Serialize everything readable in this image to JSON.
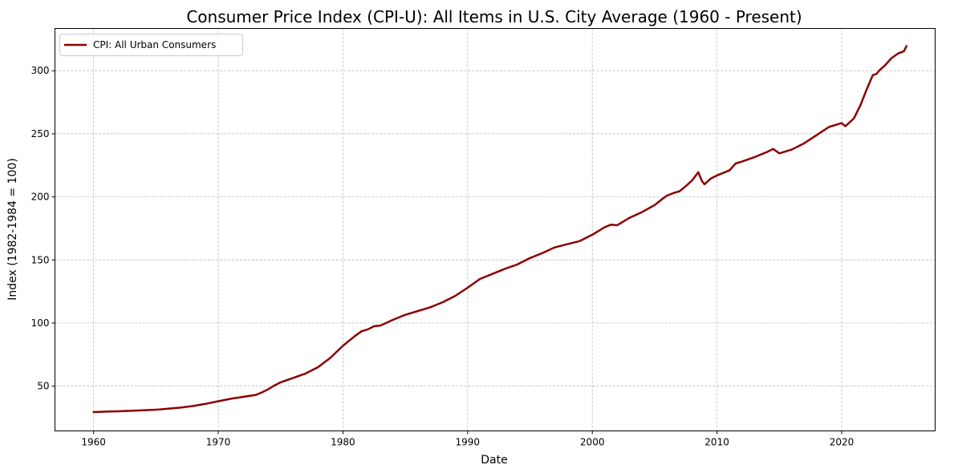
{
  "chart_data": {
    "type": "line",
    "title": "Consumer Price Index (CPI-U): All Items in U.S. City Average (1960 - Present)",
    "xlabel": "Date",
    "ylabel": "Index (1982-1984 = 100)",
    "xlim": [
      1956.9,
      2027.5
    ],
    "ylim": [
      14.5,
      333.5
    ],
    "xticks": [
      1960,
      1970,
      1980,
      1990,
      2000,
      2010,
      2020
    ],
    "xtick_labels": [
      "1960",
      "1970",
      "1980",
      "1990",
      "2000",
      "2010",
      "2020"
    ],
    "yticks": [
      50,
      100,
      150,
      200,
      250,
      300
    ],
    "ytick_labels": [
      "50",
      "100",
      "150",
      "200",
      "250",
      "300"
    ],
    "grid": true,
    "legend": "top-left",
    "series": [
      {
        "name": "CPI: All Urban Consumers",
        "color": "#8b0000",
        "x": [
          1960,
          1961,
          1962,
          1963,
          1964,
          1965,
          1966,
          1967,
          1968,
          1969,
          1970,
          1971,
          1972,
          1973,
          1973.5,
          1974,
          1974.5,
          1975,
          1976,
          1977,
          1978,
          1979,
          1980,
          1981,
          1981.5,
          1982,
          1982.5,
          1983,
          1984,
          1985,
          1986,
          1987,
          1988,
          1989,
          1990,
          1991,
          1992,
          1993,
          1994,
          1995,
          1996,
          1997,
          1998,
          1999,
          2000,
          2001,
          2001.5,
          2002,
          2003,
          2004,
          2005,
          2005.7,
          2006,
          2006.5,
          2007,
          2007.5,
          2008,
          2008.5,
          2008.8,
          2009,
          2009.5,
          2010,
          2011,
          2011.5,
          2012,
          2013,
          2014,
          2014.5,
          2015,
          2015.5,
          2016,
          2017,
          2018,
          2019,
          2020,
          2020.3,
          2020.8,
          2021,
          2021.5,
          2022,
          2022.5,
          2022.8,
          2023,
          2023.5,
          2024,
          2024.5,
          2025,
          2025.2
        ],
        "y": [
          29.4,
          29.8,
          30.1,
          30.5,
          30.9,
          31.3,
          32.1,
          33.0,
          34.3,
          36.0,
          38.0,
          40.0,
          41.5,
          43.0,
          45.0,
          47.5,
          50.5,
          53.0,
          56.5,
          60.0,
          65.0,
          72.5,
          82.0,
          90.0,
          93.5,
          95.0,
          97.5,
          98.0,
          102.5,
          106.5,
          109.5,
          112.5,
          116.5,
          121.5,
          128.0,
          135.0,
          139.0,
          143.0,
          146.5,
          151.5,
          155.5,
          160.0,
          162.5,
          165.0,
          170.0,
          176.0,
          178.0,
          177.5,
          183.5,
          188.0,
          193.5,
          199.0,
          201.0,
          203.0,
          204.5,
          208.5,
          213.0,
          219.5,
          212.5,
          210.0,
          214.5,
          217.0,
          221.0,
          226.5,
          228.0,
          231.5,
          235.5,
          238.0,
          234.5,
          236.0,
          237.5,
          242.5,
          249.0,
          255.5,
          258.5,
          256.0,
          260.5,
          262.5,
          272.5,
          285.0,
          296.5,
          297.5,
          300.0,
          304.5,
          310.0,
          313.5,
          315.5,
          319.5
        ]
      }
    ]
  }
}
